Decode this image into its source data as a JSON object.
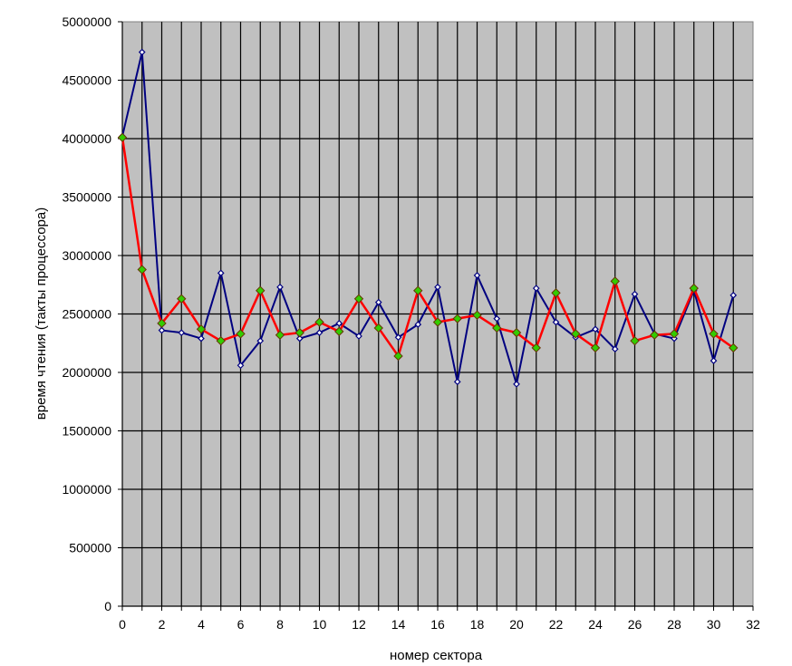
{
  "chart_data": {
    "type": "line",
    "title": "",
    "xlabel": "номер сектора",
    "ylabel": "время чтения (такты процессора)",
    "xlim": [
      0,
      32
    ],
    "ylim": [
      0,
      5000000
    ],
    "x_ticks": [
      "0",
      "2",
      "4",
      "6",
      "8",
      "10",
      "12",
      "14",
      "16",
      "18",
      "20",
      "22",
      "24",
      "26",
      "28",
      "30",
      "32"
    ],
    "y_ticks": [
      "0",
      "500000",
      "1000000",
      "1500000",
      "2000000",
      "2500000",
      "3000000",
      "3500000",
      "4000000",
      "4500000",
      "5000000"
    ],
    "grid": true,
    "legend": "none",
    "x": [
      0,
      1,
      2,
      3,
      4,
      5,
      6,
      7,
      8,
      9,
      10,
      11,
      12,
      13,
      14,
      15,
      16,
      17,
      18,
      19,
      20,
      21,
      22,
      23,
      24,
      25,
      26,
      27,
      28,
      29,
      30,
      31
    ],
    "series": [
      {
        "values": [
          4020000,
          4740000,
          2360000,
          2340000,
          2290000,
          2850000,
          2060000,
          2270000,
          2730000,
          2290000,
          2340000,
          2420000,
          2310000,
          2600000,
          2300000,
          2410000,
          2730000,
          1920000,
          2830000,
          2460000,
          1900000,
          2720000,
          2430000,
          2300000,
          2370000,
          2200000,
          2670000,
          2330000,
          2290000,
          2700000,
          2100000,
          2660000
        ],
        "color": "#000080",
        "marker": "diamond-hollow"
      },
      {
        "values": [
          4010000,
          2880000,
          2420000,
          2630000,
          2370000,
          2270000,
          2330000,
          2700000,
          2320000,
          2340000,
          2430000,
          2350000,
          2630000,
          2380000,
          2140000,
          2700000,
          2430000,
          2460000,
          2490000,
          2380000,
          2340000,
          2210000,
          2680000,
          2330000,
          2210000,
          2780000,
          2270000,
          2320000,
          2330000,
          2720000,
          2330000,
          2210000
        ],
        "color": "#ff0000",
        "marker": "diamond-filled",
        "marker_color": "#33cc00"
      }
    ],
    "plot_background": "#c0c0c0",
    "grid_color": "#000000"
  }
}
